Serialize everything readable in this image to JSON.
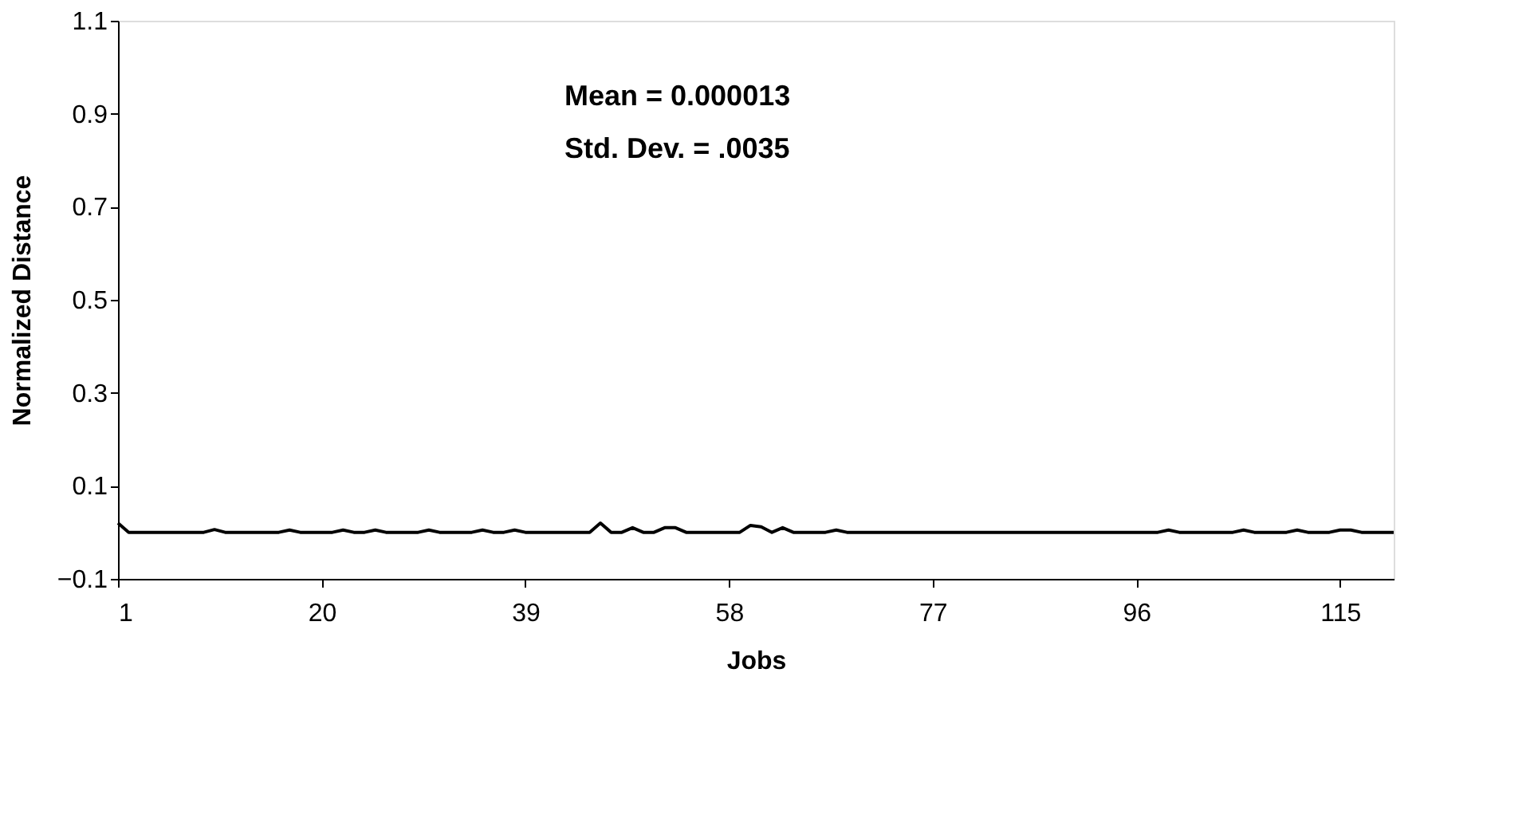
{
  "chart_data": {
    "type": "line",
    "xlabel": "Jobs",
    "ylabel": "Normalized Distance",
    "annotations": [
      "Mean  = 0.000013",
      "Std. Dev. = .0035"
    ],
    "x": [
      1,
      2,
      3,
      4,
      5,
      6,
      7,
      8,
      9,
      10,
      11,
      12,
      13,
      14,
      15,
      16,
      17,
      18,
      19,
      20,
      21,
      22,
      23,
      24,
      25,
      26,
      27,
      28,
      29,
      30,
      31,
      32,
      33,
      34,
      35,
      36,
      37,
      38,
      39,
      40,
      41,
      42,
      43,
      44,
      45,
      46,
      47,
      48,
      49,
      50,
      51,
      52,
      53,
      54,
      55,
      56,
      57,
      58,
      59,
      60,
      61,
      62,
      63,
      64,
      65,
      66,
      67,
      68,
      69,
      70,
      71,
      72,
      73,
      74,
      75,
      76,
      77,
      78,
      79,
      80,
      81,
      82,
      83,
      84,
      85,
      86,
      87,
      88,
      89,
      90,
      91,
      92,
      93,
      94,
      95,
      96,
      97,
      98,
      99,
      100,
      101,
      102,
      103,
      104,
      105,
      106,
      107,
      108,
      109,
      110,
      111,
      112,
      113,
      114,
      115,
      116,
      117,
      118,
      119,
      120
    ],
    "series": [
      {
        "color": "#000000",
        "values": [
          0.02,
          0,
          0,
          0,
          0,
          0,
          0,
          0,
          0,
          0.006,
          0,
          0,
          0,
          0,
          0,
          0,
          0.005,
          0,
          0,
          0,
          0,
          0.005,
          0,
          0,
          0.005,
          0,
          0,
          0,
          0,
          0.005,
          0,
          0,
          0,
          0,
          0.005,
          0,
          0,
          0.005,
          0,
          0,
          0,
          0,
          0,
          0,
          0,
          0.02,
          0,
          0,
          0.01,
          0,
          0,
          0.01,
          0.01,
          0,
          0,
          0,
          0,
          0,
          0,
          0.015,
          0.012,
          0,
          0.01,
          0,
          0,
          0,
          0,
          0.005,
          0,
          0,
          0,
          0,
          0,
          0,
          0,
          0,
          0,
          0,
          0,
          0,
          0,
          0,
          0,
          0,
          0,
          0,
          0,
          0,
          0,
          0,
          0,
          0,
          0,
          0,
          0,
          0,
          0,
          0,
          0.005,
          0,
          0,
          0,
          0,
          0,
          0,
          0.005,
          0,
          0,
          0,
          0,
          0.005,
          0,
          0,
          0,
          0.005,
          0.005,
          0,
          0,
          0,
          0
        ]
      }
    ],
    "xlim": [
      1,
      120
    ],
    "xticks": [
      1,
      20,
      39,
      58,
      77,
      96,
      115
    ],
    "ylim": [
      -0.1,
      1.1
    ],
    "yticks": [
      -0.1,
      0.1,
      0.3,
      0.5,
      0.7,
      0.9,
      1.1
    ],
    "grid": false,
    "legend": false,
    "marker": "none",
    "line_style": "solid"
  }
}
